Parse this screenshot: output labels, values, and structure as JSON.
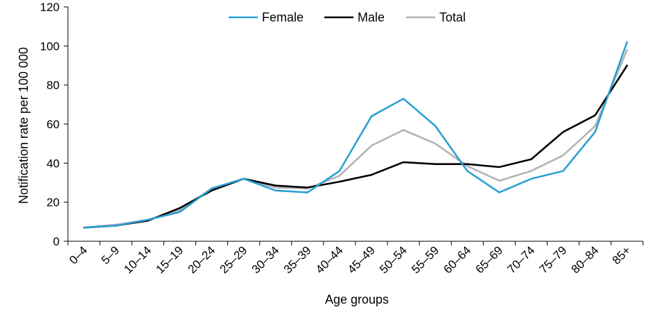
{
  "chart_data": {
    "type": "line",
    "title": "",
    "xlabel": "Age groups",
    "ylabel": "Notification rate per 100 000",
    "ylim": [
      0,
      120
    ],
    "yticks": [
      0,
      20,
      40,
      60,
      80,
      100,
      120
    ],
    "grid": false,
    "legend_position": "top-center",
    "categories": [
      "0–4",
      "5–9",
      "10–14",
      "15–19",
      "20–24",
      "25–29",
      "30–34",
      "35–39",
      "40–44",
      "45–49",
      "50–54",
      "55–59",
      "60–64",
      "65–69",
      "70–74",
      "75–79",
      "80–84",
      "85+"
    ],
    "series": [
      {
        "name": "Female",
        "color": "#2aa0d4",
        "values": [
          7,
          8,
          11,
          15,
          27,
          32,
          26,
          25,
          36,
          64,
          73,
          59,
          36,
          25,
          32,
          36,
          56,
          102
        ]
      },
      {
        "name": "Male",
        "color": "#000000",
        "values": [
          7,
          8,
          10.5,
          17,
          26,
          32,
          28.5,
          27.5,
          30.5,
          34,
          40.5,
          39.5,
          39.5,
          38,
          42,
          56,
          64.5,
          90
        ]
      },
      {
        "name": "Total",
        "color": "#b3b3b3",
        "values": [
          7,
          8.5,
          11,
          16,
          27,
          32,
          27.5,
          27,
          33.5,
          49,
          57,
          50,
          38.5,
          31,
          36,
          44,
          59,
          98
        ]
      }
    ]
  }
}
